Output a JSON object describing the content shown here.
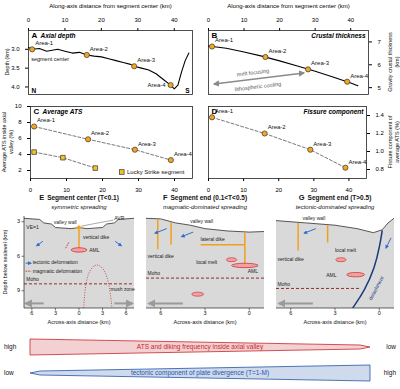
{
  "chart_data": [
    {
      "type": "line",
      "panel": "A",
      "title": "Axial depth",
      "x_label": "Along-axis distance from segment center (km)",
      "y_label": "Depth (km)",
      "xlim": [
        0,
        45
      ],
      "xticks": [
        0,
        10,
        20,
        30,
        40
      ],
      "ylim": [
        4.2,
        2.5
      ],
      "yticks": [
        {
          "value": 3,
          "label": "3.0"
        },
        3.5,
        {
          "value": 4,
          "label": "4.0"
        }
      ],
      "x": [
        0,
        1,
        3,
        5,
        8,
        10,
        12,
        14,
        16,
        18,
        20,
        22,
        24,
        26,
        28,
        29,
        31,
        33,
        35,
        37,
        39,
        40,
        41,
        42,
        43,
        44
      ],
      "values": [
        2.95,
        3.0,
        2.98,
        3.05,
        3.0,
        3.05,
        3.1,
        3.08,
        3.15,
        3.18,
        3.2,
        3.25,
        3.3,
        3.35,
        3.4,
        3.45,
        3.5,
        3.55,
        3.65,
        3.8,
        3.95,
        4.05,
        3.95,
        3.6,
        3.3,
        3.1
      ],
      "color": "#000000",
      "points": {
        "labels": [
          "Area-1",
          "Area-2",
          "Area-3",
          "Area-4"
        ],
        "x": [
          1,
          16,
          29,
          39
        ],
        "values": [
          3.0,
          3.15,
          3.45,
          3.95
        ],
        "color": "#f5a623",
        "marker": "circle"
      },
      "annotations": [
        "segment center",
        "N",
        "S"
      ]
    },
    {
      "type": "line",
      "panel": "B",
      "title": "Crustal thickness",
      "x_label": "Along-axis distance from segment center (km)",
      "y_label": "Gravity crustal thickness (km)",
      "xlim": [
        0,
        45
      ],
      "xticks": [
        0,
        10,
        20,
        30,
        40
      ],
      "ylim": [
        4.7,
        7.5
      ],
      "yticks": [
        5,
        6,
        7
      ],
      "x": [
        0,
        5,
        10,
        15,
        20,
        25,
        30,
        35,
        40,
        42
      ],
      "values": [
        6.82,
        6.72,
        6.56,
        6.38,
        6.17,
        5.95,
        5.72,
        5.47,
        5.2,
        5.08
      ],
      "color": "#000000",
      "points": {
        "labels": [
          "Area-1",
          "Area-2",
          "Area-3",
          "Area-4"
        ],
        "x": [
          1,
          16,
          28,
          39
        ],
        "values": [
          6.8,
          6.34,
          5.8,
          5.26
        ],
        "color": "#f5a623",
        "marker": "circle"
      },
      "annotations": [
        "melt focusing",
        "lithospheric cooling"
      ]
    },
    {
      "type": "scatter",
      "panel": "C",
      "title": "Average ATS",
      "y_label": "Average ATS inside axial valley (%)",
      "xlim": [
        0,
        45
      ],
      "xticks": [
        0,
        10,
        20,
        30,
        40
      ],
      "ylim": [
        1,
        10
      ],
      "yticks": [
        2,
        4,
        6,
        8,
        10
      ],
      "points": {
        "labels": [
          "Area-1",
          "Area-2",
          "Area-3",
          "Area-4"
        ],
        "x": [
          1,
          16,
          29,
          39
        ],
        "values": [
          7.5,
          5.9,
          4.6,
          3.3
        ],
        "color": "#f5a623",
        "marker": "circle",
        "line_style": "dashed"
      },
      "series": [
        {
          "name": "Lucky Strike segment",
          "x": [
            1,
            9,
            18
          ],
          "values": [
            4.3,
            3.6,
            2.3
          ],
          "color": "#f2c230",
          "marker": "square",
          "line_style": "dashed"
        }
      ],
      "legend": "bottom-right"
    },
    {
      "type": "scatter",
      "panel": "D",
      "title": "Fissure component",
      "y_label": "Fissure component of average ATS (%)",
      "xlim": [
        0,
        45
      ],
      "xticks": [
        0,
        10,
        20,
        30,
        40
      ],
      "ylim": [
        0.7,
        1.5
      ],
      "yticks": [
        0.8,
        {
          "value": 1,
          "label": "1.0"
        },
        1.2,
        1.4
      ],
      "points": {
        "labels": [
          "Area-1",
          "Area-2",
          "Area-3",
          "Area-4"
        ],
        "x": [
          1,
          16,
          29,
          39
        ],
        "values": [
          1.38,
          1.2,
          1.02,
          0.82
        ],
        "color": "#f5a623",
        "marker": "circle",
        "line_style": "dashed"
      }
    }
  ],
  "schematics": {
    "y_label": "Depth below sealevel (km)",
    "yticks": [
      3,
      6,
      9
    ],
    "x_label": "Across-axis distance (km)",
    "panels": [
      {
        "panel": "E",
        "title": "Segment center (T<0.1)",
        "subtitle": "symmetric spreading",
        "xticks": [
          {
            "value": -6,
            "label": "6"
          },
          {
            "value": -3,
            "label": "3"
          },
          0,
          3,
          6
        ],
        "labels": [
          "VE=1",
          "valley wall",
          "AVR",
          "tectonic deformation",
          "magmatic deformation",
          "vertical dike",
          "AML",
          "mush zone",
          "Moho"
        ]
      },
      {
        "panel": "F",
        "title": "Segment end (0.1<T<0.5)",
        "subtitle": "magmatic-dominated spreading",
        "xticks": [
          {
            "value": -6,
            "label": "6"
          },
          {
            "value": -3,
            "label": "3"
          },
          0
        ],
        "labels": [
          "valley wall",
          "lateral dike",
          "vertical dike",
          "local melt",
          "AML",
          "Moho"
        ]
      },
      {
        "panel": "G",
        "title": "Segment end (T>0.5)",
        "subtitle": "tectonic-dominated spreading",
        "xticks": [
          {
            "value": -6,
            "label": "6"
          },
          {
            "value": -3,
            "label": "3"
          },
          0
        ],
        "labels": [
          "valley wall",
          "local melt",
          "vertical dike",
          "AML",
          "Moho",
          "detachment"
        ]
      }
    ]
  },
  "bottom_scales": [
    {
      "text": "ATS and diking frequency inside axial valley",
      "left": "high",
      "right": "low",
      "color": "#c8282d"
    },
    {
      "text": "tectonic component of plate divergence (T=1-M)",
      "left": "low",
      "right": "high",
      "color": "#2456a8"
    }
  ]
}
